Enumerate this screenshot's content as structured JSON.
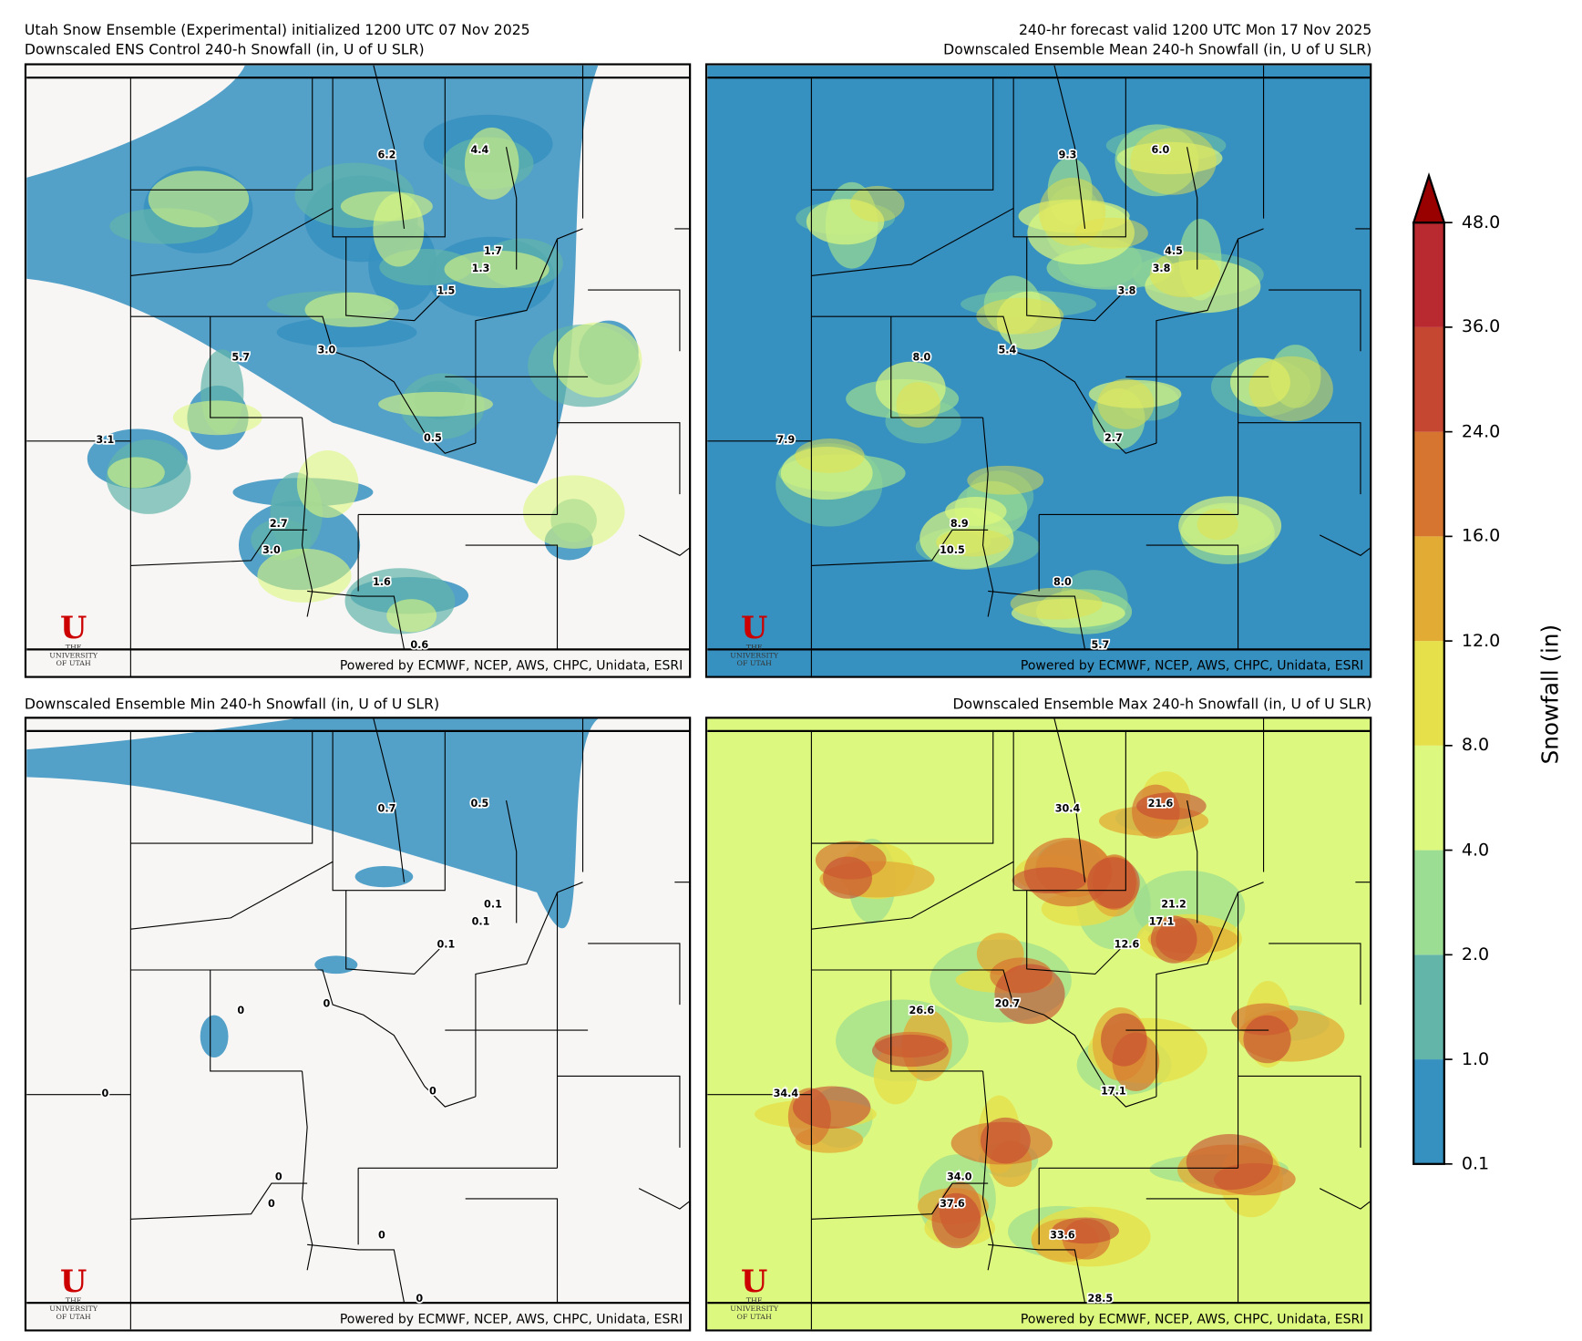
{
  "header": {
    "left_line1": "Utah Snow Ensemble (Experimental) initialized 1200 UTC 07 Nov 2025",
    "right_line1": "240-hr forecast valid 1200 UTC Mon 17 Nov 2025"
  },
  "credit": "Powered by ECMWF, NCEP, AWS, CHPC, Unidata, ESRI",
  "logo": {
    "mark": "U",
    "the": "THE",
    "line1": "UNIVERSITY",
    "line2": "OF UTAH",
    "color": "#cc0000"
  },
  "chart_data": [
    {
      "type": "heatmap",
      "title": "Downscaled ENS Control 240-h Snowfall (in, U of U SLR)",
      "point_labels": [
        "6.2",
        "4.4",
        "1.7",
        "1.3",
        "1.5",
        "5.7",
        "3.0",
        "0.5",
        "3.1",
        "2.7",
        "3.0",
        "1.6",
        "0.6"
      ]
    },
    {
      "type": "heatmap",
      "title": "Downscaled Ensemble Mean 240-h Snowfall (in, U of U SLR)",
      "point_labels": [
        "9.3",
        "6.0",
        "4.5",
        "3.8",
        "3.8",
        "8.0",
        "5.4",
        "2.7",
        "7.9",
        "8.9",
        "10.5",
        "8.0",
        "5.7"
      ]
    },
    {
      "type": "heatmap",
      "title": "Downscaled Ensemble Min 240-h Snowfall (in, U of U SLR)",
      "point_labels": [
        "0.7",
        "0.5",
        "0.1",
        "0.1",
        "0.1",
        "0",
        "0",
        "0",
        "0",
        "0",
        "0",
        "0",
        "0"
      ]
    },
    {
      "type": "heatmap",
      "title": "Downscaled Ensemble Max 240-h Snowfall (in, U of U SLR)",
      "point_labels": [
        "30.4",
        "21.6",
        "21.2",
        "17.1",
        "12.6",
        "26.6",
        "20.7",
        "17.1",
        "34.4",
        "34.0",
        "37.6",
        "33.6",
        "28.5"
      ]
    }
  ],
  "colorbar": {
    "label": "Snowfall (in)",
    "ticks": [
      "0.1",
      "1.0",
      "2.0",
      "4.0",
      "8.0",
      "12.0",
      "16.0",
      "24.0",
      "36.0",
      "48.0"
    ],
    "colors": [
      "#3690c0",
      "#63b5aa",
      "#9bdd92",
      "#ddf87e",
      "#e6e04a",
      "#e1ab34",
      "#d6752f",
      "#c54631",
      "#b82a30"
    ],
    "extend_color": "#990000",
    "extend": "max"
  }
}
